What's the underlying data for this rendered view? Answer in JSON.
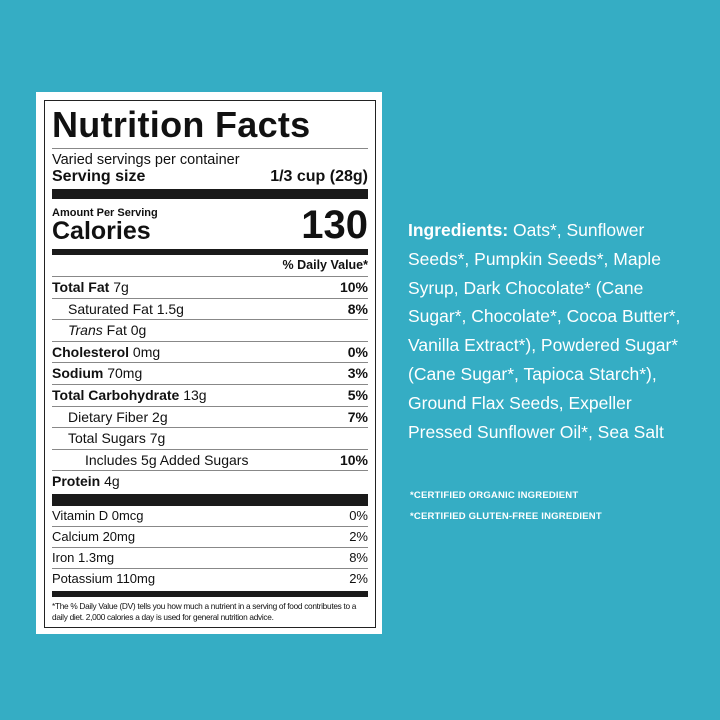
{
  "label": {
    "title": "Nutrition Facts",
    "servings_per_container": "Varied servings per container",
    "serving_size_label": "Serving size",
    "serving_size_value": "1/3 cup (28g)",
    "amount_per_serving": "Amount Per Serving",
    "calories_label": "Calories",
    "calories_value": "130",
    "dv_header": "% Daily Value*",
    "nutrients": [
      {
        "name": "Total Fat",
        "amount": "7g",
        "dv": "10%"
      },
      {
        "name": "Saturated Fat",
        "amount": "1.5g",
        "dv": "8%"
      },
      {
        "name": "Trans",
        "name_rest": "Fat",
        "amount": "0g",
        "dv": ""
      },
      {
        "name": "Cholesterol",
        "amount": "0mg",
        "dv": "0%"
      },
      {
        "name": "Sodium",
        "amount": "70mg",
        "dv": "3%"
      },
      {
        "name": "Total Carbohydrate",
        "amount": "13g",
        "dv": "5%"
      },
      {
        "name": "Dietary Fiber",
        "amount": "2g",
        "dv": "7%"
      },
      {
        "name": "Total Sugars",
        "amount": "7g",
        "dv": ""
      },
      {
        "name": "Includes 5g Added Sugars",
        "amount": "",
        "dv": "10%"
      },
      {
        "name": "Protein",
        "amount": "4g",
        "dv": ""
      }
    ],
    "vitamins": [
      {
        "name": "Vitamin D 0mcg",
        "dv": "0%"
      },
      {
        "name": "Calcium 20mg",
        "dv": "2%"
      },
      {
        "name": "Iron 1.3mg",
        "dv": "8%"
      },
      {
        "name": "Potassium 110mg",
        "dv": "2%"
      }
    ],
    "footnote": "*The % Daily Value (DV) tells you how much a nutrient in a serving of food contributes to a daily diet. 2,000 calories a day is used for general nutrition advice."
  },
  "ingredients": {
    "heading": "Ingredients:",
    "text": " Oats*, Sunflower Seeds*, Pumpkin Seeds*, Maple Syrup,  Dark Chocolate* (Cane Sugar*, Chocolate*, Cocoa Butter*, Vanilla Extract*), Powdered Sugar* (Cane Sugar*, Tapioca Starch*), Ground Flax Seeds, Expeller Pressed Sunflower Oil*, Sea Salt"
  },
  "notes": [
    "*CERTIFIED ORGANIC INGREDIENT",
    "*CERTIFIED GLUTEN-FREE INGREDIENT"
  ],
  "colors": {
    "background": "#35adc4",
    "label": "#ffffff",
    "text": "#111111"
  }
}
